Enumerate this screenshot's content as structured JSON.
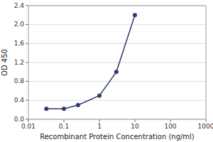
{
  "chart_data": {
    "type": "line",
    "x": [
      0.032,
      0.1,
      0.25,
      1.0,
      3.0,
      10.0
    ],
    "values": [
      0.22,
      0.22,
      0.3,
      0.5,
      1.0,
      2.2
    ],
    "color": "#2E3B6E",
    "marker": "circle",
    "line_style": "solid",
    "xlabel": "Recombinant Protein Concentration (ng/ml)",
    "ylabel": "OD 450",
    "log": "x",
    "xlim": [
      0.01,
      1000
    ],
    "ylim": [
      0,
      2.4
    ],
    "xticks": [
      0.01,
      0.1,
      1,
      10,
      100,
      1000
    ],
    "yticks": [
      {
        "value": 0,
        "label": "0.0"
      },
      0.4,
      0.8,
      1.2,
      1.6,
      {
        "value": 2.0,
        "label": "2.0"
      },
      2.4
    ],
    "grid": true
  }
}
